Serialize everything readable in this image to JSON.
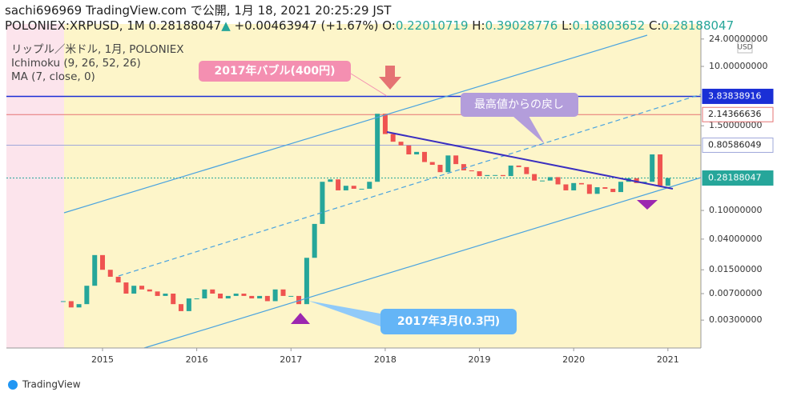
{
  "chart_data": {
    "type": "candlestick",
    "header": {
      "line1": "sachi696969 TradingView.com で公開, 1月 18, 2021 20:25:29 JST",
      "symbol": "POLONIEX:XRPUSD, 1M 0.28188047",
      "arrow": "▲",
      "change": "+0.00463947 (+1.67%)",
      "o_label": "O:",
      "o": "0.22010719",
      "h_label": "H:",
      "h": "0.39028776",
      "l_label": "L:",
      "l": "0.18803652",
      "c_label": "C:",
      "c": "0.28188047"
    },
    "legend": [
      "リップル／米ドル, 1月, POLONIEX",
      "Ichimoku (9, 26, 52, 26)",
      "MA (7, close, 0)"
    ],
    "currency": "USD",
    "annotations": [
      "2017年バブル(400円)",
      "最高値からの戻し",
      "2017年3月(0.3円)"
    ],
    "brand": "TradingView",
    "log_scale": true,
    "up_color": "#26a69a",
    "down_color": "#ef5350",
    "xlim": [
      2013.98,
      2021.35
    ],
    "xticks": [
      2015,
      2016,
      2017,
      2018,
      2019,
      2020,
      2021
    ],
    "ylim": [
      0.00123,
      38.8
    ],
    "yticks": [
      {
        "value": 24,
        "label": "24.00000000"
      },
      {
        "value": 10,
        "label": "10.00000000"
      },
      {
        "value": 1.5,
        "label": "1.50000000"
      },
      {
        "value": 0.1,
        "label": "0.10000000"
      },
      {
        "value": 0.04,
        "label": "0.04000000"
      },
      {
        "value": 0.015,
        "label": "0.01500000"
      },
      {
        "value": 0.007,
        "label": "0.00700000"
      },
      {
        "value": 0.003,
        "label": "0.00300000"
      }
    ],
    "price_lines": [
      {
        "value": 3.83838916,
        "color": "#1a2fd6"
      },
      {
        "value": 2.14366636,
        "color": "#e57373"
      },
      {
        "value": 0.80586049,
        "color": "#9fa8da"
      },
      {
        "value": 0.28188047,
        "color": "#26a69a"
      }
    ],
    "series": [
      {
        "name": "XRPUSD",
        "x": [
          2014.583,
          2014.667,
          2014.75,
          2014.833,
          2014.917,
          2015,
          2015.083,
          2015.167,
          2015.25,
          2015.333,
          2015.417,
          2015.5,
          2015.583,
          2015.667,
          2015.75,
          2015.833,
          2015.917,
          2016,
          2016.083,
          2016.167,
          2016.25,
          2016.333,
          2016.417,
          2016.5,
          2016.583,
          2016.667,
          2016.75,
          2016.833,
          2016.917,
          2017,
          2017.083,
          2017.167,
          2017.25,
          2017.333,
          2017.417,
          2017.5,
          2017.583,
          2017.667,
          2017.75,
          2017.833,
          2017.917,
          2018,
          2018.083,
          2018.167,
          2018.25,
          2018.333,
          2018.417,
          2018.5,
          2018.583,
          2018.667,
          2018.75,
          2018.833,
          2018.917,
          2019,
          2019.083,
          2019.167,
          2019.25,
          2019.333,
          2019.417,
          2019.5,
          2019.583,
          2019.667,
          2019.75,
          2019.833,
          2019.917,
          2020,
          2020.083,
          2020.167,
          2020.25,
          2020.333,
          2020.417,
          2020.5,
          2020.583,
          2020.667,
          2020.75,
          2020.833,
          2020.917,
          2021
        ],
        "values": [
          0.0055,
          0.0045,
          0.005,
          0.009,
          0.024,
          0.015,
          0.012,
          0.01,
          0.007,
          0.009,
          0.008,
          0.0075,
          0.0065,
          0.007,
          0.005,
          0.004,
          0.006,
          0.006,
          0.008,
          0.007,
          0.006,
          0.0065,
          0.007,
          0.0065,
          0.006,
          0.0065,
          0.0055,
          0.008,
          0.0065,
          0.0065,
          0.005,
          0.022,
          0.065,
          0.25,
          0.27,
          0.19,
          0.22,
          0.2,
          0.2,
          0.25,
          2.2,
          1.15,
          0.9,
          0.8,
          0.6,
          0.65,
          0.47,
          0.43,
          0.34,
          0.58,
          0.44,
          0.36,
          0.35,
          0.3,
          0.31,
          0.31,
          0.3,
          0.42,
          0.4,
          0.32,
          0.26,
          0.26,
          0.29,
          0.23,
          0.19,
          0.24,
          0.23,
          0.17,
          0.21,
          0.2,
          0.18,
          0.25,
          0.28,
          0.24,
          0.25,
          0.6,
          0.22,
          0.28188047
        ]
      }
    ]
  }
}
